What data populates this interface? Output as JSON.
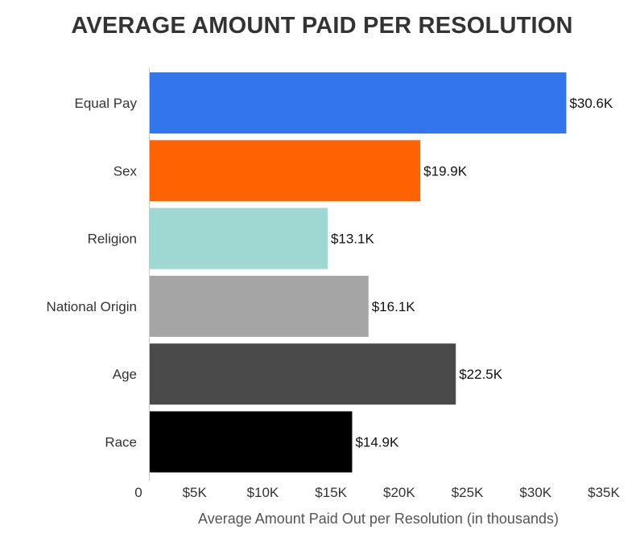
{
  "chart_data": {
    "type": "bar",
    "orientation": "horizontal",
    "title": "AVERAGE AMOUNT PAID PER RESOLUTION",
    "xlabel": "Average Amount Paid Out per Resolution (in thousands)",
    "ylabel": "",
    "categories": [
      "Equal Pay",
      "Sex",
      "Religion",
      "National Origin",
      "Age",
      "Race"
    ],
    "values": [
      30.6,
      19.9,
      13.1,
      16.1,
      22.5,
      14.9
    ],
    "value_labels": [
      "$30.6K",
      "$19.9K",
      "$13.1K",
      "$16.1K",
      "$22.5K",
      "$14.9K"
    ],
    "colors": [
      "#3375ec",
      "#ff6200",
      "#9fd8d2",
      "#a5a5a5",
      "#4a4a4a",
      "#000000"
    ],
    "x_ticks": [
      {
        "value": 0,
        "label": "0"
      },
      {
        "value": 5,
        "label": "$5K"
      },
      {
        "value": 10,
        "label": "$10K"
      },
      {
        "value": 15,
        "label": "$15K"
      },
      {
        "value": 20,
        "label": "$20K"
      },
      {
        "value": 25,
        "label": "$25K"
      },
      {
        "value": 30,
        "label": "$30K"
      },
      {
        "value": 35,
        "label": "$35K"
      }
    ],
    "xlim": [
      0,
      35
    ],
    "grid": false,
    "legend": "none"
  }
}
